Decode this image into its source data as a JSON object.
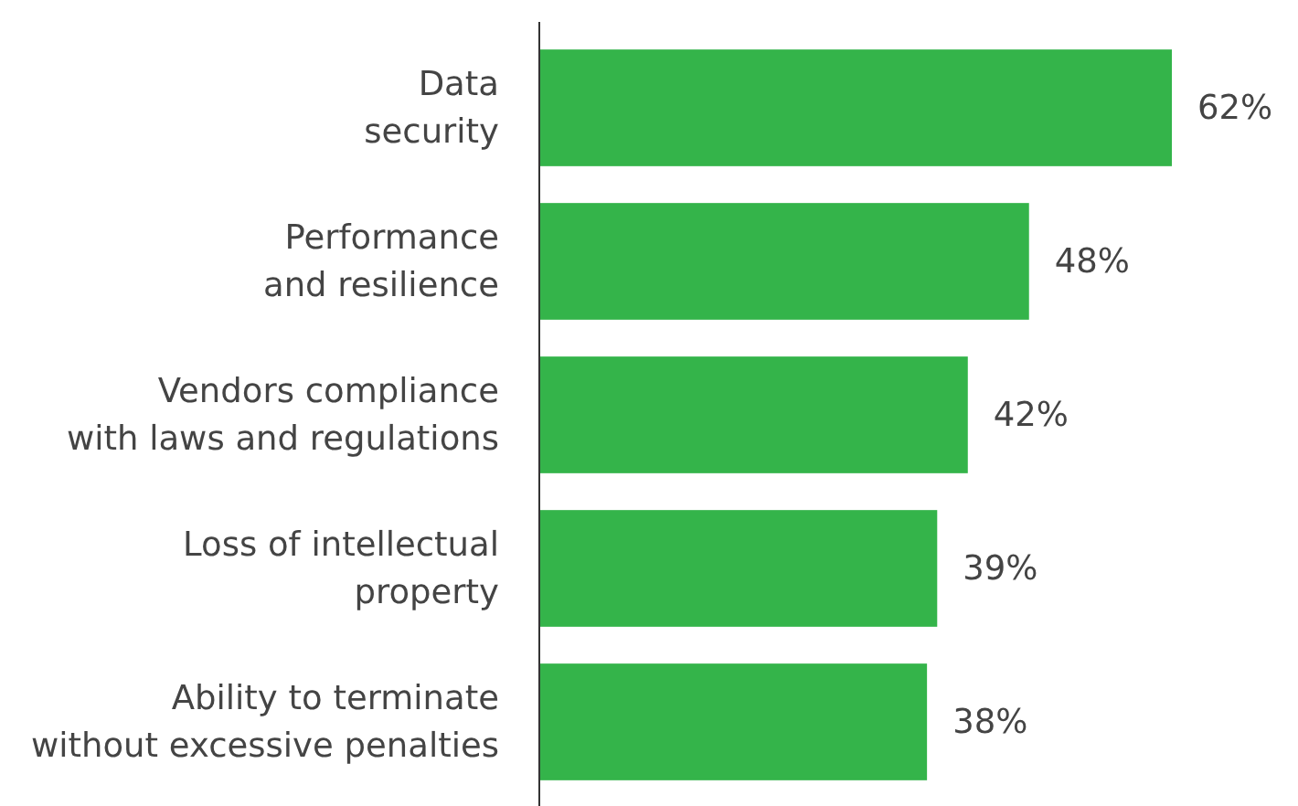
{
  "chart_data": {
    "type": "bar",
    "orientation": "horizontal",
    "categories": [
      "Data\nsecurity",
      "Performance\nand resilience",
      "Vendors compliance\nwith laws and regulations",
      "Loss of intellectual\nproperty",
      "Ability to terminate\nwithout excessive penalties"
    ],
    "values": [
      62,
      48,
      42,
      39,
      38
    ],
    "color": "#34b44a",
    "value_labels": [
      "62%",
      "48%",
      "42%",
      "39%",
      "38%"
    ]
  }
}
